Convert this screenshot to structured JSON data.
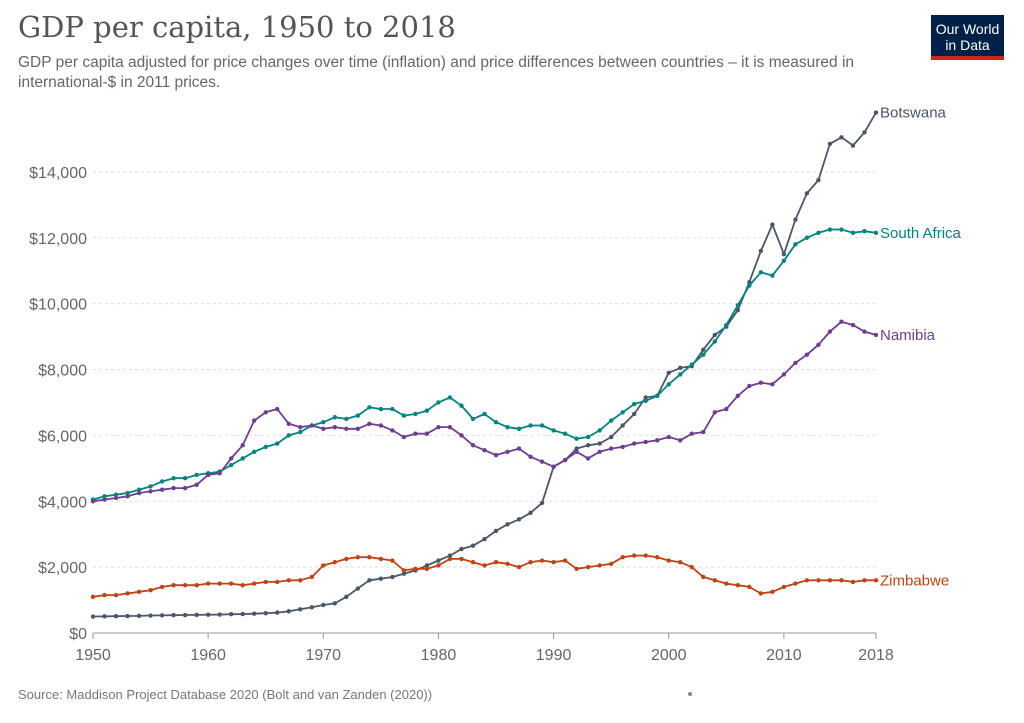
{
  "header": {
    "title": "GDP per capita, 1950 to 2018",
    "subtitle": "GDP per capita adjusted for price changes over time (inflation) and price differences between countries – it is measured in international-$ in 2011 prices.",
    "logo_line1": "Our World",
    "logo_line2": "in Data"
  },
  "footer": {
    "source": "Maddison Project Database 2020 (Bolt and van Zanden (2020))",
    "source_prefix": "Source: "
  },
  "chart_data": {
    "type": "line",
    "title": "GDP per capita, 1950 to 2018",
    "subtitle": "GDP per capita adjusted for price changes over time (inflation) and price differences between countries – it is measured in international-$ in 2011 prices.",
    "xlabel": "",
    "ylabel": "",
    "xlim": [
      1950,
      2018
    ],
    "ylim": [
      0,
      16000
    ],
    "x_ticks": [
      1950,
      1960,
      1970,
      1980,
      1990,
      2000,
      2010,
      2018
    ],
    "y_ticks": [
      0,
      2000,
      4000,
      6000,
      8000,
      10000,
      12000,
      14000
    ],
    "y_tick_labels": [
      "$0",
      "$2,000",
      "$4,000",
      "$6,000",
      "$8,000",
      "$10,000",
      "$12,000",
      "$14,000"
    ],
    "grid": "horizontal dashed",
    "legend": "labels at line ends (right)",
    "x": [
      1950,
      1951,
      1952,
      1953,
      1954,
      1955,
      1956,
      1957,
      1958,
      1959,
      1960,
      1961,
      1962,
      1963,
      1964,
      1965,
      1966,
      1967,
      1968,
      1969,
      1970,
      1971,
      1972,
      1973,
      1974,
      1975,
      1976,
      1977,
      1978,
      1979,
      1980,
      1981,
      1982,
      1983,
      1984,
      1985,
      1986,
      1987,
      1988,
      1989,
      1990,
      1991,
      1992,
      1993,
      1994,
      1995,
      1996,
      1997,
      1998,
      1999,
      2000,
      2001,
      2002,
      2003,
      2004,
      2005,
      2006,
      2007,
      2008,
      2009,
      2010,
      2011,
      2012,
      2013,
      2014,
      2015,
      2016,
      2017,
      2018
    ],
    "series": [
      {
        "name": "Botswana",
        "color": "#4c5669",
        "values": [
          500,
          505,
          510,
          515,
          520,
          530,
          535,
          540,
          545,
          550,
          555,
          560,
          570,
          575,
          585,
          600,
          620,
          660,
          720,
          780,
          850,
          900,
          1100,
          1350,
          1600,
          1650,
          1700,
          1800,
          1900,
          2050,
          2200,
          2350,
          2550,
          2650,
          2850,
          3100,
          3300,
          3450,
          3650,
          3950,
          5050,
          5250,
          5600,
          5700,
          5750,
          5950,
          6300,
          6650,
          7150,
          7200,
          7900,
          8050,
          8100,
          8600,
          9050,
          9300,
          9800,
          10650,
          11600,
          12400,
          11500,
          12550,
          13350,
          13750,
          14850,
          15050,
          14800,
          15200,
          15800
        ]
      },
      {
        "name": "South Africa",
        "color": "#00847e",
        "values": [
          4050,
          4150,
          4200,
          4250,
          4350,
          4450,
          4600,
          4700,
          4700,
          4800,
          4850,
          4900,
          5100,
          5300,
          5500,
          5650,
          5750,
          6000,
          6100,
          6300,
          6400,
          6550,
          6500,
          6600,
          6850,
          6800,
          6800,
          6600,
          6650,
          6750,
          7000,
          7150,
          6900,
          6500,
          6650,
          6400,
          6250,
          6200,
          6300,
          6300,
          6150,
          6050,
          5900,
          5950,
          6150,
          6450,
          6700,
          6950,
          7050,
          7200,
          7550,
          7850,
          8150,
          8450,
          8850,
          9350,
          9950,
          10550,
          10950,
          10850,
          11300,
          11800,
          12000,
          12150,
          12250,
          12250,
          12150,
          12200,
          12150
        ]
      },
      {
        "name": "Namibia",
        "color": "#6d3e91",
        "values": [
          4000,
          4050,
          4100,
          4150,
          4250,
          4300,
          4350,
          4400,
          4400,
          4500,
          4800,
          4850,
          5300,
          5700,
          6450,
          6700,
          6800,
          6350,
          6250,
          6300,
          6200,
          6250,
          6200,
          6200,
          6350,
          6300,
          6150,
          5950,
          6050,
          6050,
          6250,
          6250,
          6000,
          5700,
          5550,
          5400,
          5500,
          5600,
          5350,
          5200,
          5050,
          5250,
          5500,
          5300,
          5500,
          5600,
          5650,
          5750,
          5800,
          5850,
          5950,
          5850,
          6050,
          6100,
          6700,
          6800,
          7200,
          7500,
          7600,
          7550,
          7850,
          8200,
          8450,
          8750,
          9150,
          9450,
          9350,
          9150,
          9050
        ]
      },
      {
        "name": "Zimbabwe",
        "color": "#bf4313",
        "values": [
          1100,
          1150,
          1150,
          1200,
          1250,
          1300,
          1400,
          1450,
          1450,
          1450,
          1500,
          1500,
          1500,
          1450,
          1500,
          1550,
          1550,
          1600,
          1600,
          1700,
          2050,
          2150,
          2250,
          2300,
          2300,
          2250,
          2200,
          1900,
          1950,
          1950,
          2050,
          2250,
          2250,
          2150,
          2050,
          2150,
          2100,
          2000,
          2150,
          2200,
          2150,
          2200,
          1950,
          2000,
          2050,
          2100,
          2300,
          2350,
          2350,
          2300,
          2200,
          2150,
          2000,
          1700,
          1600,
          1500,
          1450,
          1400,
          1200,
          1250,
          1400,
          1500,
          1600,
          1600,
          1600,
          1600,
          1550,
          1600,
          1600
        ]
      }
    ]
  }
}
